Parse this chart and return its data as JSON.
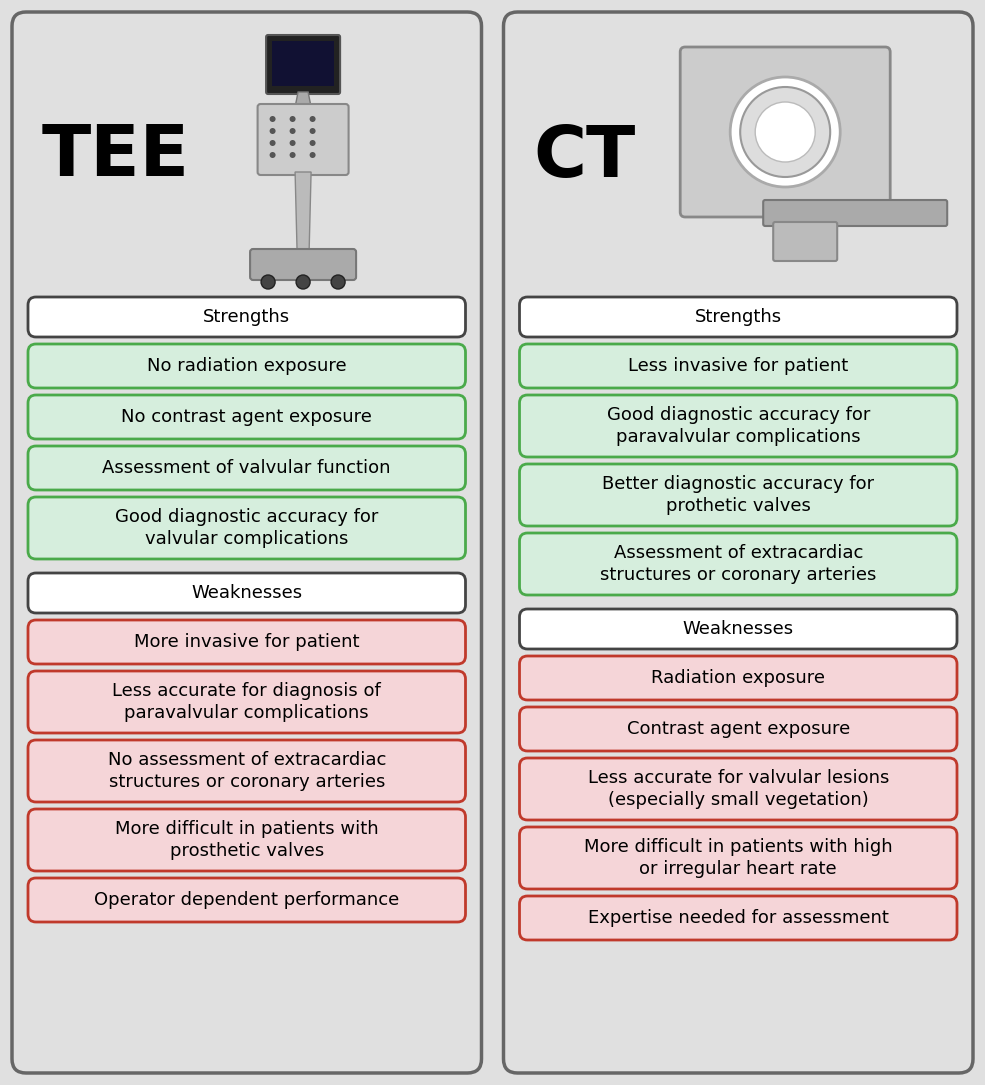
{
  "background_color": "#e0e0e0",
  "panel_bg": "#e0e0e0",
  "white_box_bg": "#ffffff",
  "white_box_border": "#444444",
  "green_box_bg": "#d6eedd",
  "green_box_border": "#4aaa4a",
  "red_box_bg": "#f5d5d8",
  "red_box_border": "#c0392b",
  "tee_title": "TEE",
  "ct_title": "CT",
  "strengths_label": "Strengths",
  "weaknesses_label": "Weaknesses",
  "tee_strengths": [
    "No radiation exposure",
    "No contrast agent exposure",
    "Assessment of valvular function",
    "Good diagnostic accuracy for\nvalvular complications"
  ],
  "tee_weaknesses": [
    "More invasive for patient",
    "Less accurate for diagnosis of\nparavalvular complications",
    "No assessment of extracardiac\nstructures or coronary arteries",
    "More difficult in patients with\nprosthetic valves",
    "Operator dependent performance"
  ],
  "ct_strengths": [
    "Less invasive for patient",
    "Good diagnostic accuracy for\nparavalvular complications",
    "Better diagnostic accuracy for\nprothetic valves",
    "Assessment of extracardiac\nstructures or coronary arteries"
  ],
  "ct_weaknesses": [
    "Radiation exposure",
    "Contrast agent exposure",
    "Less accurate for valvular lesions\n(especially small vegetation)",
    "More difficult in patients with high\nor irregular heart rate",
    "Expertise needed for assessment"
  ]
}
